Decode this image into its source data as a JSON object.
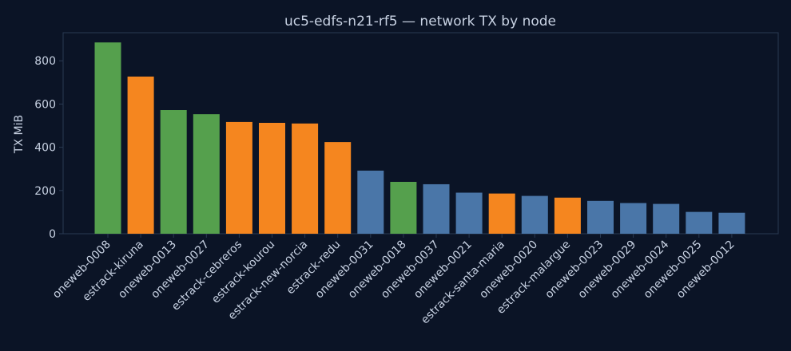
{
  "chart_data": {
    "type": "bar",
    "title": "uc5-edfs-n21-rf5 — network TX by node",
    "xlabel": "",
    "ylabel": "TX MiB",
    "ylim": [
      0,
      930
    ],
    "yticks": [
      0,
      200,
      400,
      600,
      800
    ],
    "grid": false,
    "categories": [
      "oneweb-0008",
      "estrack-kiruna",
      "oneweb-0013",
      "oneweb-0027",
      "estrack-cebreros",
      "estrack-kourou",
      "estrack-new-norcia",
      "estrack-redu",
      "oneweb-0031",
      "oneweb-0018",
      "oneweb-0037",
      "oneweb-0021",
      "estrack-santa-maria",
      "oneweb-0020",
      "estrack-malargue",
      "oneweb-0023",
      "oneweb-0029",
      "oneweb-0024",
      "oneweb-0025",
      "oneweb-0012"
    ],
    "values": [
      885,
      727,
      572,
      553,
      517,
      513,
      510,
      424,
      292,
      240,
      229,
      190,
      186,
      175,
      167,
      152,
      142,
      138,
      101,
      97
    ],
    "bar_colors": [
      "#55a04d",
      "#f5861f",
      "#55a04d",
      "#55a04d",
      "#f5861f",
      "#f5861f",
      "#f5861f",
      "#f5861f",
      "#4a76a8",
      "#55a04d",
      "#4a76a8",
      "#4a76a8",
      "#f5861f",
      "#4a76a8",
      "#f5861f",
      "#4a76a8",
      "#4a76a8",
      "#4a76a8",
      "#4a76a8",
      "#4a76a8"
    ],
    "colors": {
      "background": "#0b1426",
      "text": "#c8d2e3",
      "axis": "#2a3a52"
    }
  }
}
